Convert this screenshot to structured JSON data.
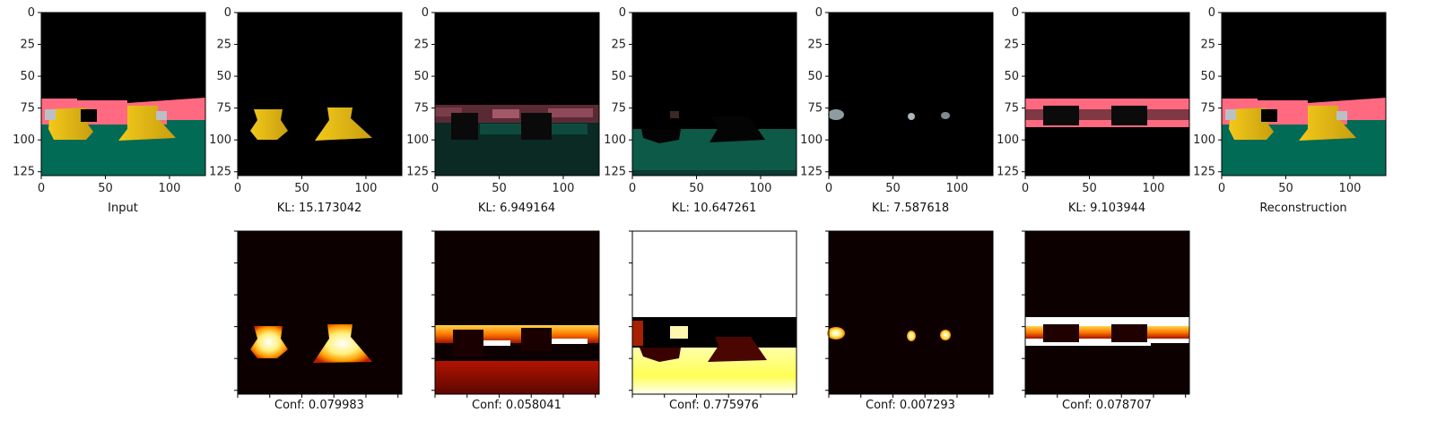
{
  "chart_data": {
    "type": "image-grid",
    "image_axis": {
      "ticks": [
        0,
        25,
        50,
        75,
        100,
        125
      ],
      "xticks": [
        0,
        50,
        100
      ],
      "xlim": [
        0,
        128
      ],
      "ylim": [
        128,
        0
      ]
    },
    "top_row": [
      {
        "caption": "Input",
        "has_yticks": true
      },
      {
        "caption": "KL: 15.173042",
        "kl": 15.173042
      },
      {
        "caption": "KL: 6.949164",
        "kl": 6.949164
      },
      {
        "caption": "KL: 10.647261",
        "kl": 10.647261
      },
      {
        "caption": "KL: 7.587618",
        "kl": 7.587618
      },
      {
        "caption": "KL: 9.103944",
        "kl": 9.103944
      },
      {
        "caption": "Reconstruction"
      }
    ],
    "bottom_row": [
      {
        "caption": "Conf: 0.079983",
        "conf": 0.079983
      },
      {
        "caption": "Conf: 0.058041",
        "conf": 0.058041
      },
      {
        "caption": "Conf: 0.775976",
        "conf": 0.775976
      },
      {
        "caption": "Conf: 0.007293",
        "conf": 0.007293
      },
      {
        "caption": "Conf: 0.078707",
        "conf": 0.078707
      }
    ],
    "colors": {
      "background": "#000000",
      "floor": "#016b55",
      "wall": "#ff6a80",
      "object_yellow": "#e6bd18",
      "object_dark_yellow": "#b8930d",
      "object_grey": "#b9c0c6",
      "heat_low": "#0d0000",
      "heat_mid": "#d42a00",
      "heat_high": "#ffffff"
    }
  }
}
